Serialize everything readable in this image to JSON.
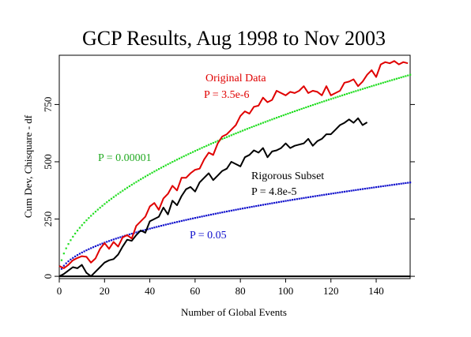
{
  "chart_data": {
    "type": "line",
    "title": "GCP Results, Aug 1998 to Nov 2003",
    "xlabel": "Number of Global Events",
    "ylabel": "Cum Dev, Chisquare - df",
    "xlim": [
      0,
      155
    ],
    "ylim": [
      -10,
      965
    ],
    "x_ticks": [
      0,
      20,
      40,
      60,
      80,
      100,
      120,
      140
    ],
    "y_ticks": [
      0,
      250,
      500,
      750
    ],
    "grid": false,
    "series": [
      {
        "name": "Original Data",
        "color": "#e00000",
        "style": "solid",
        "x": [
          0,
          2,
          4,
          6,
          8,
          10,
          12,
          14,
          16,
          18,
          20,
          22,
          24,
          26,
          28,
          30,
          32,
          34,
          36,
          38,
          40,
          42,
          44,
          46,
          48,
          50,
          52,
          54,
          56,
          58,
          60,
          62,
          64,
          66,
          68,
          70,
          72,
          74,
          76,
          78,
          80,
          82,
          84,
          86,
          88,
          90,
          92,
          94,
          96,
          98,
          100,
          102,
          104,
          106,
          108,
          110,
          112,
          114,
          116,
          118,
          120,
          122,
          124,
          126,
          128,
          130,
          132,
          134,
          136,
          138,
          140,
          142,
          144,
          146,
          148,
          150,
          152,
          154
        ],
        "y": [
          45,
          35,
          50,
          70,
          80,
          88,
          85,
          60,
          78,
          120,
          145,
          120,
          150,
          130,
          170,
          180,
          165,
          220,
          240,
          260,
          305,
          320,
          290,
          340,
          360,
          395,
          375,
          430,
          430,
          450,
          465,
          470,
          510,
          540,
          530,
          580,
          610,
          620,
          640,
          660,
          700,
          720,
          710,
          740,
          745,
          780,
          760,
          770,
          810,
          800,
          790,
          805,
          800,
          810,
          830,
          800,
          810,
          805,
          790,
          830,
          790,
          800,
          810,
          845,
          850,
          860,
          830,
          850,
          880,
          900,
          870,
          925,
          935,
          930,
          940,
          925,
          935,
          930
        ]
      },
      {
        "name": "Rigorous Subset",
        "color": "#000000",
        "style": "solid",
        "x": [
          0,
          2,
          4,
          6,
          8,
          10,
          12,
          14,
          16,
          18,
          20,
          22,
          24,
          26,
          28,
          30,
          32,
          34,
          36,
          38,
          40,
          42,
          44,
          46,
          48,
          50,
          52,
          54,
          56,
          58,
          60,
          62,
          64,
          66,
          68,
          70,
          72,
          74,
          76,
          78,
          80,
          82,
          84,
          86,
          88,
          90,
          92,
          94,
          96,
          98,
          100,
          102,
          104,
          106,
          108,
          110,
          112,
          114,
          116,
          118,
          120,
          122,
          124,
          126,
          128,
          130,
          132,
          134,
          136
        ],
        "y": [
          0,
          10,
          25,
          40,
          35,
          50,
          15,
          0,
          20,
          40,
          60,
          70,
          75,
          95,
          130,
          160,
          155,
          180,
          200,
          190,
          240,
          250,
          260,
          300,
          270,
          330,
          310,
          350,
          380,
          390,
          370,
          410,
          430,
          450,
          420,
          440,
          460,
          470,
          500,
          490,
          480,
          520,
          530,
          550,
          540,
          560,
          520,
          545,
          550,
          560,
          580,
          560,
          570,
          575,
          580,
          600,
          570,
          590,
          600,
          620,
          620,
          640,
          660,
          670,
          685,
          670,
          690,
          660,
          672
        ]
      },
      {
        "name": "P = 0.00001",
        "label": "P = 0.00001",
        "color": "#22dd22",
        "style": "dotted",
        "formula": "sqrt"
      },
      {
        "name": "P = 0.05",
        "label": "P = 0.05",
        "color": "#1010cc",
        "style": "dotted",
        "formula": "sqrt"
      }
    ],
    "annotations": {
      "original_name": "Original Data",
      "original_p": "P = 3.5e-6",
      "subset_name": "Rigorous Subset",
      "subset_p": "P = 4.8e-5",
      "p_00001": "P = 0.00001",
      "p_05": "P = 0.05"
    },
    "envelope_values": {
      "p_00001": {
        "x": [
          0,
          155
        ],
        "y": [
          0,
          880
        ]
      },
      "p_05": {
        "x": [
          0,
          155
        ],
        "y": [
          0,
          410
        ]
      }
    }
  }
}
